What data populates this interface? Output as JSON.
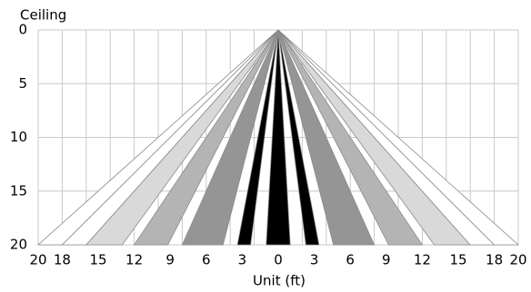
{
  "chart_data": {
    "type": "beam",
    "y_title": "Ceiling",
    "x_title": "Unit (ft)",
    "xlim": [
      -20,
      20
    ],
    "ylim": [
      0,
      20
    ],
    "yticks": [
      0,
      5,
      10,
      15,
      20
    ],
    "xticks": [
      {
        "value": -20,
        "label": "20"
      },
      {
        "value": -18,
        "label": "18"
      },
      {
        "value": -15,
        "label": "15"
      },
      {
        "value": -12,
        "label": "12"
      },
      {
        "value": -9,
        "label": "9"
      },
      {
        "value": -6,
        "label": "6"
      },
      {
        "value": -3,
        "label": "3"
      },
      0,
      3,
      6,
      9,
      12,
      15,
      18,
      20
    ],
    "xgrid": [
      -20,
      -18,
      -16,
      -14,
      -12,
      -10,
      -8,
      -6,
      -4,
      -2,
      0,
      2,
      4,
      6,
      8,
      10,
      12,
      14,
      16,
      18,
      20
    ],
    "beams": [
      {
        "from": -20,
        "to": -18,
        "color": "#ffffff"
      },
      {
        "from": -18,
        "to": -16,
        "color": "#ffffff"
      },
      {
        "from": -16,
        "to": -13,
        "color": "#d9d9d9"
      },
      {
        "from": -12,
        "to": -9.2,
        "color": "#b4b4b4"
      },
      {
        "from": -8,
        "to": -4.6,
        "color": "#959595"
      },
      {
        "from": -3.4,
        "to": -2.3,
        "color": "#000000"
      },
      {
        "from": -1,
        "to": 1,
        "color": "#000000"
      },
      {
        "from": 2.3,
        "to": 3.4,
        "color": "#000000"
      },
      {
        "from": 4.6,
        "to": 8,
        "color": "#959595"
      },
      {
        "from": 9.2,
        "to": 12,
        "color": "#b4b4b4"
      },
      {
        "from": 13,
        "to": 16,
        "color": "#d9d9d9"
      },
      {
        "from": 16,
        "to": 18,
        "color": "#ffffff"
      },
      {
        "from": 18,
        "to": 20,
        "color": "#ffffff"
      }
    ]
  }
}
